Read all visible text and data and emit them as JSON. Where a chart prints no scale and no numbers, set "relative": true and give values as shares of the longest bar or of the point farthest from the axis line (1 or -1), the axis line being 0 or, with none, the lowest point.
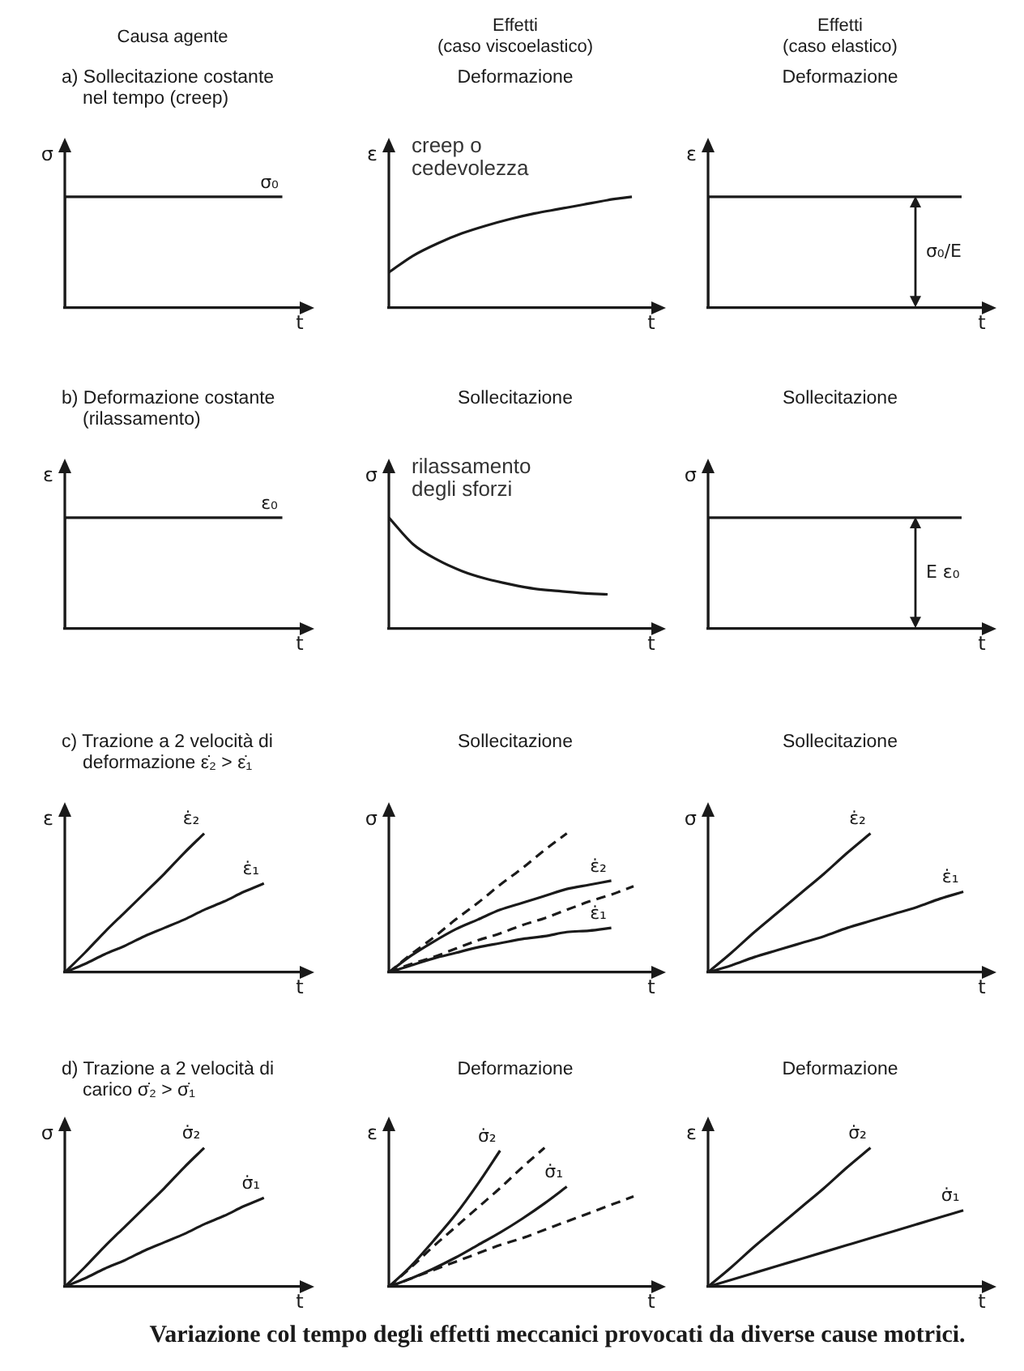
{
  "chart_data": [
    {
      "type": "step",
      "relative": true,
      "subtitle": "Causa agente",
      "title": "a) Sollecitazione costante nel tempo (creep)",
      "ylabel": "σ",
      "xlabel": "t",
      "marker": "none",
      "categories": [
        null,
        null,
        null,
        null,
        null,
        null,
        null,
        null,
        null,
        null,
        null
      ],
      "series": [
        {
          "name": "σ₀",
          "color": "#1a1a1a",
          "values": [
            0,
            1,
            1,
            1,
            1,
            1,
            1,
            1,
            1,
            1,
            1
          ]
        }
      ]
    },
    {
      "type": "line",
      "relative": true,
      "subtitle": "Effetti\n(caso viscoelastico)",
      "title": "Deformazione",
      "ylabel": "ε",
      "xlabel": "t",
      "marker": "none",
      "categories": [
        null,
        null,
        null,
        null,
        null,
        null,
        null,
        null,
        null,
        null,
        null
      ],
      "series": [
        {
          "color": "#1a1a1a",
          "values": [
            0.32,
            0.47,
            0.58,
            0.67,
            0.74,
            0.8,
            0.85,
            0.89,
            0.93,
            0.97,
            1
          ]
        }
      ],
      "annotations": [
        "creep o cedevolezza"
      ]
    },
    {
      "type": "step",
      "relative": true,
      "subtitle": "Effetti\n(caso elastico)",
      "title": "Deformazione",
      "ylabel": "ε",
      "xlabel": "t",
      "marker": "none",
      "categories": [
        null,
        null,
        null,
        null,
        null,
        null,
        null,
        null,
        null,
        null,
        null
      ],
      "series": [
        {
          "color": "#1a1a1a",
          "values": [
            0,
            1,
            1,
            1,
            1,
            1,
            1,
            1,
            1,
            1,
            1
          ]
        }
      ],
      "annotations": [
        {
          "text": "σ₀/E",
          "y": 1
        }
      ]
    },
    {
      "type": "step",
      "relative": true,
      "title": "b) Deformazione costante (rilassamento)",
      "ylabel": "ε",
      "xlabel": "t",
      "marker": "none",
      "categories": [
        null,
        null,
        null,
        null,
        null,
        null,
        null,
        null,
        null,
        null,
        null
      ],
      "series": [
        {
          "name": "ε₀",
          "color": "#1a1a1a",
          "values": [
            0,
            1,
            1,
            1,
            1,
            1,
            1,
            1,
            1,
            1,
            1
          ]
        }
      ]
    },
    {
      "type": "line",
      "relative": true,
      "title": "Sollecitazione",
      "ylabel": "σ",
      "xlabel": "t",
      "marker": "none",
      "categories": [
        null,
        null,
        null,
        null,
        null,
        null,
        null,
        null,
        null,
        null,
        null
      ],
      "series": [
        {
          "color": "#1a1a1a",
          "values": [
            1,
            0.76,
            0.62,
            0.52,
            0.45,
            0.4,
            0.36,
            0.34,
            0.32,
            0.31,
            null
          ]
        }
      ],
      "annotations": [
        "rilassamento degli sforzi"
      ]
    },
    {
      "type": "step",
      "relative": true,
      "title": "Sollecitazione",
      "ylabel": "σ",
      "xlabel": "t",
      "marker": "none",
      "categories": [
        null,
        null,
        null,
        null,
        null,
        null,
        null,
        null,
        null,
        null,
        null
      ],
      "series": [
        {
          "color": "#1a1a1a",
          "values": [
            0,
            1,
            1,
            1,
            1,
            1,
            1,
            1,
            1,
            1,
            1
          ]
        }
      ],
      "annotations": [
        {
          "text": "E ε₀",
          "y": 1
        }
      ]
    },
    {
      "type": "line",
      "relative": true,
      "title": "c) Trazione a 2 velocità di deformazione ε̇₂ > ε̇₁",
      "ylabel": "ε",
      "xlabel": "t",
      "marker": "none",
      "categories": [
        null,
        null,
        null,
        null,
        null,
        null,
        null,
        null,
        null,
        null,
        null,
        null
      ],
      "series": [
        {
          "name": "ε̇₂",
          "color": "#1a1a1a",
          "values": [
            0,
            0.14,
            0.29,
            0.43,
            0.57,
            0.71,
            0.86,
            1,
            null,
            null,
            null,
            null
          ]
        },
        {
          "name": "ε̇₁",
          "color": "#1a1a1a",
          "values": [
            0,
            0.06,
            0.13,
            0.19,
            0.26,
            0.32,
            0.38,
            0.45,
            0.51,
            0.58,
            0.64,
            null
          ]
        }
      ]
    },
    {
      "type": "line",
      "relative": true,
      "title": "Sollecitazione",
      "ylabel": "σ",
      "xlabel": "t",
      "marker": "none",
      "categories": [
        null,
        null,
        null,
        null,
        null,
        null,
        null,
        null,
        null,
        null,
        null,
        null
      ],
      "series": [
        {
          "color": "#1a1a1a",
          "line_style": "dashed",
          "values": [
            0,
            0.13,
            0.25,
            0.38,
            0.5,
            0.63,
            0.75,
            0.88,
            1,
            null,
            null,
            null
          ]
        },
        {
          "name": "ε̇₂",
          "color": "#1a1a1a",
          "values": [
            0,
            0.12,
            0.22,
            0.31,
            0.38,
            0.45,
            0.5,
            0.55,
            0.6,
            0.63,
            0.66,
            null
          ]
        },
        {
          "color": "#1a1a1a",
          "line_style": "dashed",
          "values": [
            0,
            0.06,
            0.11,
            0.17,
            0.23,
            0.28,
            0.34,
            0.39,
            0.45,
            0.51,
            0.56,
            0.62
          ]
        },
        {
          "name": "ε̇₁",
          "color": "#1a1a1a",
          "values": [
            0,
            0.05,
            0.1,
            0.14,
            0.18,
            0.21,
            0.24,
            0.26,
            0.29,
            0.3,
            0.32,
            null
          ]
        }
      ]
    },
    {
      "type": "line",
      "relative": true,
      "title": "Sollecitazione",
      "ylabel": "σ",
      "xlabel": "t",
      "marker": "none",
      "categories": [
        null,
        null,
        null,
        null,
        null,
        null,
        null,
        null,
        null,
        null,
        null,
        null
      ],
      "series": [
        {
          "name": "ε̇₂",
          "color": "#1a1a1a",
          "values": [
            0,
            0.14,
            0.29,
            0.43,
            0.57,
            0.71,
            0.86,
            1,
            null,
            null,
            null,
            null
          ]
        },
        {
          "name": "ε̇₁",
          "color": "#1a1a1a",
          "values": [
            0,
            0.05,
            0.11,
            0.16,
            0.21,
            0.26,
            0.32,
            0.37,
            0.42,
            0.47,
            0.53,
            0.58
          ]
        }
      ]
    },
    {
      "type": "line",
      "relative": true,
      "title": "d) Trazione a 2 velocità di carico σ̇₂ > σ̇₁",
      "ylabel": "σ",
      "xlabel": "t",
      "marker": "none",
      "categories": [
        null,
        null,
        null,
        null,
        null,
        null,
        null,
        null,
        null,
        null,
        null,
        null
      ],
      "series": [
        {
          "name": "σ̇₂",
          "color": "#1a1a1a",
          "values": [
            0,
            0.14,
            0.29,
            0.43,
            0.57,
            0.71,
            0.86,
            1,
            null,
            null,
            null,
            null
          ]
        },
        {
          "name": "σ̇₁",
          "color": "#1a1a1a",
          "values": [
            0,
            0.06,
            0.13,
            0.19,
            0.26,
            0.32,
            0.38,
            0.45,
            0.51,
            0.58,
            0.64,
            null
          ]
        }
      ]
    },
    {
      "type": "line",
      "relative": true,
      "title": "Deformazione",
      "ylabel": "ε",
      "xlabel": "t",
      "marker": "none",
      "categories": [
        null,
        null,
        null,
        null,
        null,
        null,
        null,
        null,
        null,
        null,
        null,
        null
      ],
      "series": [
        {
          "name": "σ̇₂",
          "color": "#1a1a1a",
          "values": [
            0,
            0.15,
            0.33,
            0.52,
            0.74,
            0.98,
            null,
            null,
            null,
            null,
            null,
            null
          ]
        },
        {
          "color": "#1a1a1a",
          "line_style": "dashed",
          "values": [
            0,
            0.14,
            0.29,
            0.43,
            0.57,
            0.71,
            0.86,
            1,
            null,
            null,
            null,
            null
          ]
        },
        {
          "name": "σ̇₁",
          "color": "#1a1a1a",
          "values": [
            0,
            0.06,
            0.13,
            0.21,
            0.3,
            0.39,
            0.49,
            0.6,
            0.72,
            null,
            null,
            null
          ]
        },
        {
          "color": "#1a1a1a",
          "line_style": "dashed",
          "values": [
            0,
            0.06,
            0.12,
            0.18,
            0.24,
            0.3,
            0.35,
            0.41,
            0.47,
            0.53,
            0.59,
            0.65
          ]
        }
      ]
    },
    {
      "type": "line",
      "relative": true,
      "title": "Deformazione",
      "ylabel": "ε",
      "xlabel": "t",
      "marker": "none",
      "categories": [
        null,
        null,
        null,
        null,
        null,
        null,
        null,
        null,
        null,
        null,
        null,
        null
      ],
      "series": [
        {
          "name": "σ̇₂",
          "color": "#1a1a1a",
          "values": [
            0,
            0.14,
            0.29,
            0.43,
            0.57,
            0.71,
            0.86,
            1,
            null,
            null,
            null,
            null
          ]
        },
        {
          "name": "σ̇₁",
          "color": "#1a1a1a",
          "values": [
            0,
            0.05,
            0.1,
            0.15,
            0.2,
            0.25,
            0.3,
            0.35,
            0.4,
            0.45,
            0.5,
            0.55
          ]
        }
      ],
      "annotations": [
        "Variazione col tempo degli effetti meccanici provocati da diverse cause motrici."
      ]
    }
  ]
}
